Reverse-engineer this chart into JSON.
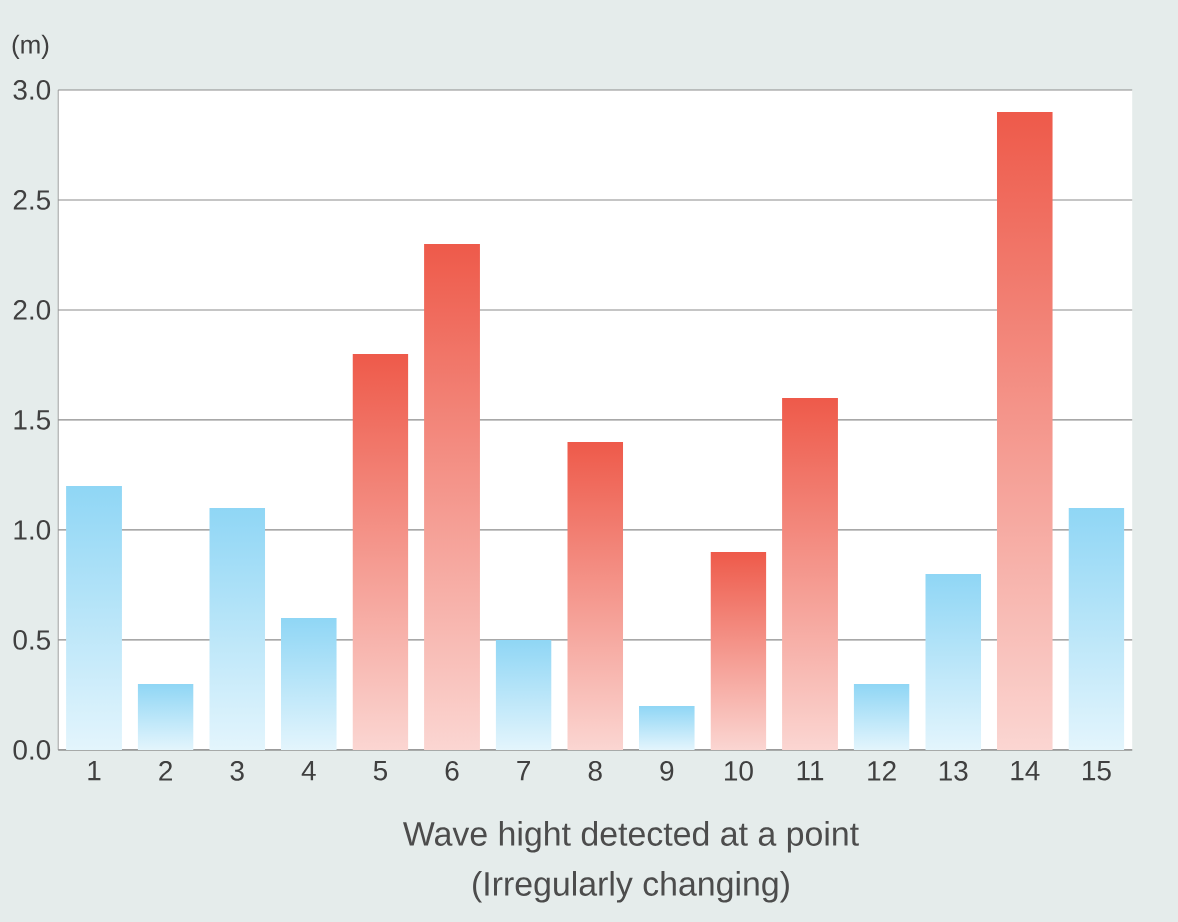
{
  "chart_data": {
    "type": "bar",
    "ylabel": "(m)",
    "xlabel": "Wave hight detected at a point",
    "annotations": [
      "(Irregularly changing)"
    ],
    "categories": [
      "1",
      "2",
      "3",
      "4",
      "5",
      "6",
      "7",
      "8",
      "9",
      "10",
      "11",
      "12",
      "13",
      "14",
      "15"
    ],
    "values": [
      1.2,
      0.3,
      1.1,
      0.6,
      1.8,
      2.3,
      0.5,
      1.4,
      0.2,
      0.9,
      1.6,
      0.3,
      0.8,
      2.9,
      1.1
    ],
    "colors": [
      "#8fd6f5",
      "#8fd6f5",
      "#8fd6f5",
      "#8fd6f5",
      "#ee5a4a",
      "#ee5a4a",
      "#8fd6f5",
      "#ee5a4a",
      "#8fd6f5",
      "#ee5a4a",
      "#ee5a4a",
      "#8fd6f5",
      "#8fd6f5",
      "#ee5a4a",
      "#8fd6f5"
    ],
    "ylim": [
      0,
      3
    ],
    "yticks": [
      {
        "value": 0,
        "label": "0.0"
      },
      {
        "value": 0.5,
        "label": "0.5"
      },
      {
        "value": 1,
        "label": "1.0"
      },
      {
        "value": 1.5,
        "label": "1.5"
      },
      {
        "value": 2,
        "label": "2.0"
      },
      {
        "value": 2.5,
        "label": "2.5"
      },
      {
        "value": 3,
        "label": "3.0"
      }
    ],
    "grid": "y"
  }
}
